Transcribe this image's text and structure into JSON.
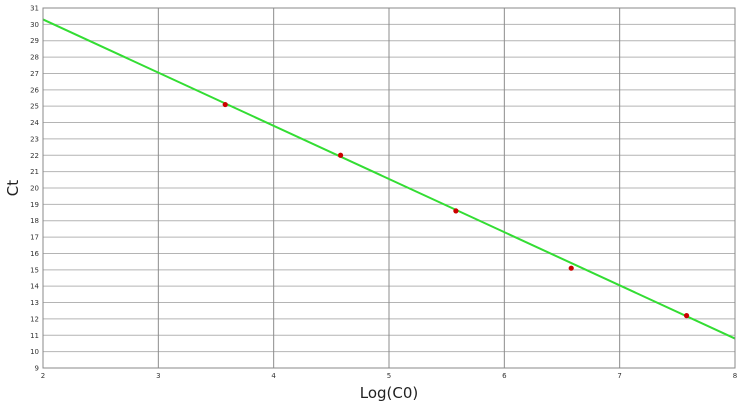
{
  "chart_data": {
    "type": "scatter",
    "title": "",
    "xlabel": "Log(C0)",
    "ylabel": "Ct",
    "xlim": [
      2,
      8
    ],
    "ylim": [
      9,
      31
    ],
    "x_ticks": [
      "2",
      "3",
      "4",
      "5",
      "6",
      "7",
      "8"
    ],
    "y_ticks": [
      "9",
      "10",
      "11",
      "12",
      "13",
      "14",
      "15",
      "16",
      "17",
      "18",
      "19",
      "20",
      "21",
      "22",
      "23",
      "24",
      "25",
      "26",
      "27",
      "28",
      "29",
      "30",
      "31"
    ],
    "grid": true,
    "series": [
      {
        "type": "scatter",
        "x": [
          3.58,
          4.58,
          5.58,
          6.58,
          7.58
        ],
        "y": [
          25.1,
          22.0,
          18.6,
          15.1,
          12.2
        ],
        "color": "#cc0000"
      },
      {
        "type": "line",
        "x": [
          2,
          8
        ],
        "y": [
          30.3,
          10.8
        ],
        "color": "#33dd33"
      }
    ]
  }
}
